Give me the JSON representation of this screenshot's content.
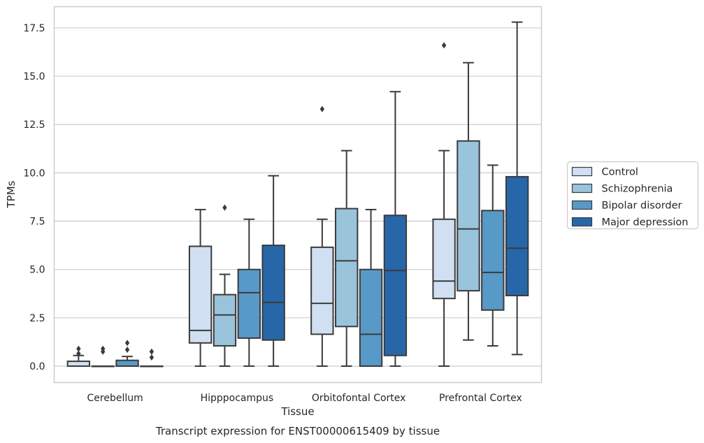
{
  "chart_data": {
    "type": "boxplot",
    "caption": "Transcript expression for ENST00000615409 by tissue",
    "xlabel": "Tissue",
    "ylabel": "TPMs",
    "ylim": [
      -0.85,
      18.6
    ],
    "yticks": [
      "0.0",
      "2.5",
      "5.0",
      "7.5",
      "10.0",
      "12.5",
      "15.0",
      "17.5"
    ],
    "ytick_values": [
      0,
      2.5,
      5,
      7.5,
      10,
      12.5,
      15,
      17.5
    ],
    "grid": "horizontal",
    "legend_position": "right",
    "categories": [
      "Cerebellum",
      "Hipppocampus",
      "Orbitofontal Cortex",
      "Prefrontal Cortex"
    ],
    "series": [
      {
        "name": "Control",
        "color": "#d0e0f2",
        "boxes": [
          {
            "whislo": 0,
            "q1": 0,
            "med": 0,
            "q3": 0.25,
            "whishi": 0.55,
            "fliers": [
              0.65,
              0.9
            ]
          },
          {
            "whislo": 0,
            "q1": 1.2,
            "med": 1.85,
            "q3": 6.2,
            "whishi": 8.1,
            "fliers": []
          },
          {
            "whislo": 0,
            "q1": 1.65,
            "med": 3.25,
            "q3": 6.15,
            "whishi": 7.6,
            "fliers": [
              13.3
            ]
          },
          {
            "whislo": 0,
            "q1": 3.5,
            "med": 4.4,
            "q3": 7.6,
            "whishi": 11.15,
            "fliers": [
              16.6
            ]
          }
        ]
      },
      {
        "name": "Schizophrenia",
        "color": "#9ac3dc",
        "boxes": [
          {
            "whislo": 0,
            "q1": 0,
            "med": 0,
            "q3": 0,
            "whishi": 0,
            "fliers": [
              0.75,
              0.9
            ]
          },
          {
            "whislo": 0,
            "q1": 1.05,
            "med": 2.65,
            "q3": 3.7,
            "whishi": 4.75,
            "fliers": [
              8.2
            ]
          },
          {
            "whislo": 0,
            "q1": 2.05,
            "med": 5.45,
            "q3": 8.15,
            "whishi": 11.15,
            "fliers": []
          },
          {
            "whislo": 1.35,
            "q1": 3.9,
            "med": 7.1,
            "q3": 11.65,
            "whishi": 15.7,
            "fliers": []
          }
        ]
      },
      {
        "name": "Bipolar disorder",
        "color": "#5799c7",
        "boxes": [
          {
            "whislo": 0,
            "q1": 0,
            "med": 0,
            "q3": 0.3,
            "whishi": 0.5,
            "fliers": [
              0.85,
              1.2
            ]
          },
          {
            "whislo": 0,
            "q1": 1.45,
            "med": 3.8,
            "q3": 5.0,
            "whishi": 7.6,
            "fliers": []
          },
          {
            "whislo": 0,
            "q1": 0,
            "med": 1.65,
            "q3": 5.0,
            "whishi": 8.1,
            "fliers": []
          },
          {
            "whislo": 1.05,
            "q1": 2.9,
            "med": 4.85,
            "q3": 8.05,
            "whishi": 10.4,
            "fliers": []
          }
        ]
      },
      {
        "name": "Major depression",
        "color": "#2767a9",
        "boxes": [
          {
            "whislo": 0,
            "q1": 0,
            "med": 0,
            "q3": 0,
            "whishi": 0,
            "fliers": [
              0.45,
              0.75
            ]
          },
          {
            "whislo": 0,
            "q1": 1.35,
            "med": 3.3,
            "q3": 6.25,
            "whishi": 9.85,
            "fliers": []
          },
          {
            "whislo": 0,
            "q1": 0.55,
            "med": 4.95,
            "q3": 7.8,
            "whishi": 14.2,
            "fliers": []
          },
          {
            "whislo": 0.6,
            "q1": 3.65,
            "med": 6.1,
            "q3": 9.8,
            "whishi": 17.8,
            "fliers": []
          }
        ]
      }
    ]
  }
}
